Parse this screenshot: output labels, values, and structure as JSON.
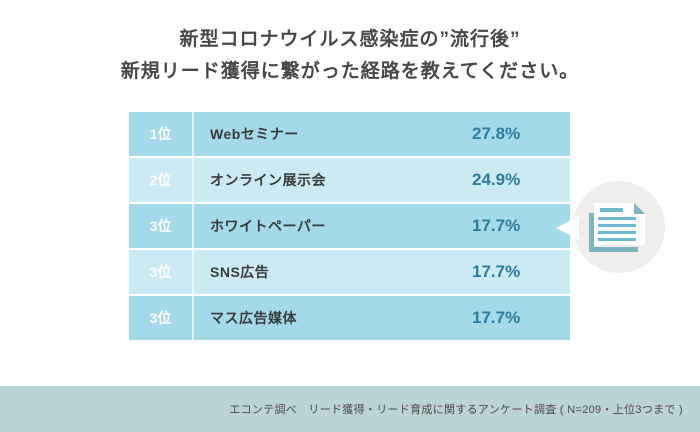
{
  "title": {
    "line1": "新型コロナウイルス感染症の”流行後”",
    "line2": "新規リード獲得に繋がった経路を教えてください。"
  },
  "ranking": {
    "rows": [
      {
        "rank": "1位",
        "label": "Webセミナー",
        "value": "27.8%"
      },
      {
        "rank": "2位",
        "label": "オンライン展示会",
        "value": "24.9%"
      },
      {
        "rank": "3位",
        "label": "ホワイトペーパー",
        "value": "17.7%"
      },
      {
        "rank": "3位",
        "label": "SNS広告",
        "value": "17.7%"
      },
      {
        "rank": "3位",
        "label": "マス広告媒体",
        "value": "17.7%"
      }
    ]
  },
  "footer": {
    "source": "エコンテ調べ　リード獲得・リード育成に関するアンケート調査 ( N=209・上位3つまで )"
  },
  "icons": {
    "callout": "document-icon"
  },
  "colors": {
    "row_dark": "#a3d9e8",
    "row_light": "#cbeaf3",
    "rank_text": "#ffffff",
    "label_text": "#3b3b3b",
    "value_text": "#2c7d9e",
    "title_text": "#484848",
    "footer_bg": "#bad3d5",
    "footer_text": "#4b4b4b",
    "circle_bg": "#efeeed",
    "icon_teal": "#7eb3c1",
    "icon_line_teal": "#6fbad0"
  },
  "chart_data": {
    "type": "table",
    "title": "新型コロナウイルス感染症の”流行後” 新規リード獲得に繋がった経路を教えてください。",
    "categories": [
      "Webセミナー",
      "オンライン展示会",
      "ホワイトペーパー",
      "SNS広告",
      "マス広告媒体"
    ],
    "ranks": [
      "1位",
      "2位",
      "3位",
      "3位",
      "3位"
    ],
    "values": [
      27.8,
      24.9,
      17.7,
      17.7,
      17.7
    ],
    "unit": "%",
    "source_note": "エコンテ調べ　リード獲得・リード育成に関するアンケート調査 ( N=209・上位3つまで )"
  }
}
